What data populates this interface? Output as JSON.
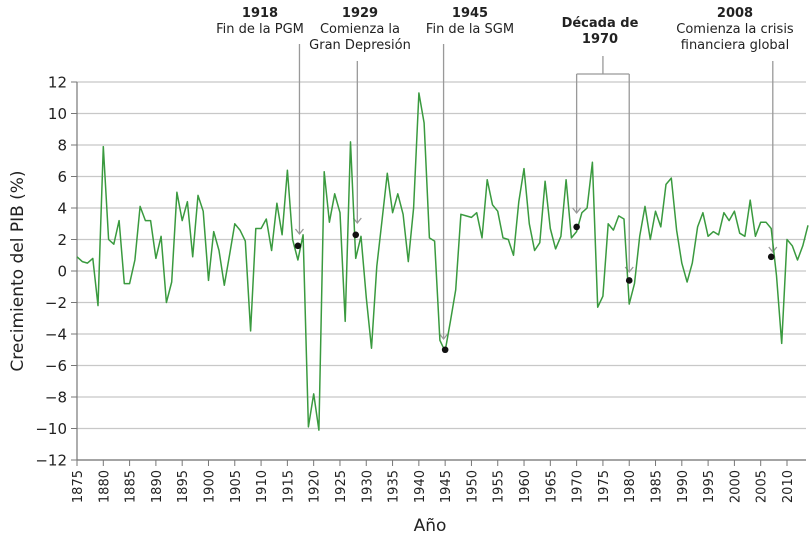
{
  "chart_data": {
    "type": "line",
    "title": "",
    "xlabel": "Año",
    "ylabel": "Crecimiento del PIB (%)",
    "xlim": [
      1875,
      2014
    ],
    "ylim": [
      -12,
      12
    ],
    "yticks": [
      -12,
      -10,
      -8,
      -6,
      -4,
      -2,
      0,
      2,
      4,
      6,
      8,
      10,
      12
    ],
    "ytick_labels": [
      "−12",
      "−10",
      "−8",
      "−6",
      "−4",
      "−2",
      "0",
      "2",
      "4",
      "6",
      "8",
      "10",
      "12"
    ],
    "xticks": [
      1875,
      1880,
      1885,
      1890,
      1895,
      1900,
      1905,
      1910,
      1915,
      1920,
      1925,
      1930,
      1935,
      1940,
      1945,
      1950,
      1955,
      1960,
      1965,
      1970,
      1975,
      1980,
      1985,
      1990,
      1995,
      2000,
      2005,
      2010
    ],
    "grid": "horizontal",
    "legend": "none",
    "line_color": "#3a9a3f",
    "series": [
      {
        "name": "Crecimiento del PIB",
        "x": [
          1875,
          1876,
          1877,
          1878,
          1879,
          1880,
          1881,
          1882,
          1883,
          1884,
          1885,
          1886,
          1887,
          1888,
          1889,
          1890,
          1891,
          1892,
          1893,
          1894,
          1895,
          1896,
          1897,
          1898,
          1899,
          1900,
          1901,
          1902,
          1903,
          1904,
          1905,
          1906,
          1907,
          1908,
          1909,
          1910,
          1911,
          1912,
          1913,
          1914,
          1915,
          1916,
          1917,
          1918,
          1919,
          1920,
          1921,
          1922,
          1923,
          1924,
          1925,
          1926,
          1927,
          1928,
          1929,
          1930,
          1931,
          1932,
          1933,
          1934,
          1935,
          1936,
          1937,
          1938,
          1939,
          1940,
          1941,
          1942,
          1943,
          1944,
          1945,
          1946,
          1947,
          1948,
          1949,
          1950,
          1951,
          1952,
          1953,
          1954,
          1955,
          1956,
          1957,
          1958,
          1959,
          1960,
          1961,
          1962,
          1963,
          1964,
          1965,
          1966,
          1967,
          1968,
          1969,
          1970,
          1971,
          1972,
          1973,
          1974,
          1975,
          1976,
          1977,
          1978,
          1979,
          1980,
          1981,
          1982,
          1983,
          1984,
          1985,
          1986,
          1987,
          1988,
          1989,
          1990,
          1991,
          1992,
          1993,
          1994,
          1995,
          1996,
          1997,
          1998,
          1999,
          2000,
          2001,
          2002,
          2003,
          2004,
          2005,
          2006,
          2007,
          2008,
          2009,
          2010,
          2011,
          2012,
          2013,
          2014
        ],
        "values": [
          0.9,
          0.6,
          0.5,
          0.8,
          -2.2,
          7.9,
          2.0,
          1.7,
          3.2,
          -0.8,
          -0.8,
          0.7,
          4.1,
          3.2,
          3.2,
          0.8,
          2.2,
          -2.0,
          -0.7,
          5.0,
          3.2,
          4.4,
          0.9,
          4.8,
          3.8,
          -0.6,
          2.5,
          1.3,
          -0.9,
          1.0,
          3.0,
          2.6,
          1.9,
          -3.8,
          2.7,
          2.7,
          3.3,
          1.3,
          4.3,
          2.3,
          6.4,
          2.0,
          0.7,
          2.3,
          -9.9,
          -7.8,
          -10.1,
          6.3,
          3.1,
          4.9,
          3.7,
          -3.2,
          8.2,
          0.8,
          2.2,
          -1.7,
          -4.9,
          0.3,
          3.2,
          6.2,
          3.7,
          4.9,
          3.6,
          0.6,
          4.0,
          11.3,
          9.4,
          2.1,
          1.9,
          -4.4,
          -5.1,
          -3.2,
          -1.2,
          3.6,
          3.5,
          3.4,
          3.7,
          2.1,
          5.8,
          4.2,
          3.8,
          2.1,
          2.0,
          1.0,
          4.4,
          6.5,
          3.0,
          1.3,
          1.8,
          5.7,
          2.7,
          1.4,
          2.2,
          5.8,
          2.1,
          2.5,
          3.7,
          4.0,
          6.9,
          -2.3,
          -1.6,
          3.0,
          2.6,
          3.5,
          3.3,
          -2.1,
          -0.8,
          2.2,
          4.1,
          2.0,
          3.8,
          2.8,
          5.5,
          5.9,
          2.6,
          0.5,
          -0.7,
          0.5,
          2.8,
          3.7,
          2.2,
          2.5,
          2.3,
          3.7,
          3.2,
          3.8,
          2.4,
          2.2,
          4.5,
          2.2,
          3.1,
          3.1,
          2.7,
          -0.3,
          -4.6,
          2.0,
          1.6,
          0.7,
          1.6,
          2.9
        ]
      }
    ],
    "highlight_points": [
      {
        "year": 1917,
        "value": 1.6
      },
      {
        "year": 1928,
        "value": 2.3
      },
      {
        "year": 1945,
        "value": -5.0
      },
      {
        "year": 1970,
        "value": 2.8
      },
      {
        "year": 1980,
        "value": -0.6
      },
      {
        "year": 2007,
        "value": 0.9
      }
    ],
    "annotations": [
      {
        "year_label": "1918",
        "text": "Fin de la PGM",
        "arrow_year": 1917,
        "arrow_value": 1.6
      },
      {
        "year_label": "1929",
        "text": "Comienza la Gran Depresión",
        "arrow_year": 1928,
        "arrow_value": 2.3
      },
      {
        "year_label": "1945",
        "text": "Fin de la SGM",
        "arrow_year": 1945,
        "arrow_value": -4.3
      },
      {
        "year_label": "Década de 1970",
        "text": "",
        "bracket": [
          1970,
          1980
        ]
      },
      {
        "year_label": "2008",
        "text": "Comienza la crisis financiera global",
        "arrow_year": 2007,
        "arrow_value": 1.0
      }
    ]
  },
  "annotations": {
    "a1918": {
      "year": "1918",
      "line1": "Fin de la PGM"
    },
    "a1929": {
      "year": "1929",
      "line1": "Comienza la",
      "line2": "Gran Depresión"
    },
    "a1945": {
      "year": "1945",
      "line1": "Fin de la SGM"
    },
    "a1970": {
      "line1": "Década de",
      "line2": "1970"
    },
    "a2008": {
      "year": "2008",
      "line1": "Comienza la crisis",
      "line2": "financiera global"
    }
  },
  "axes": {
    "xlabel": "Año",
    "ylabel": "Crecimiento del PIB (%)"
  }
}
